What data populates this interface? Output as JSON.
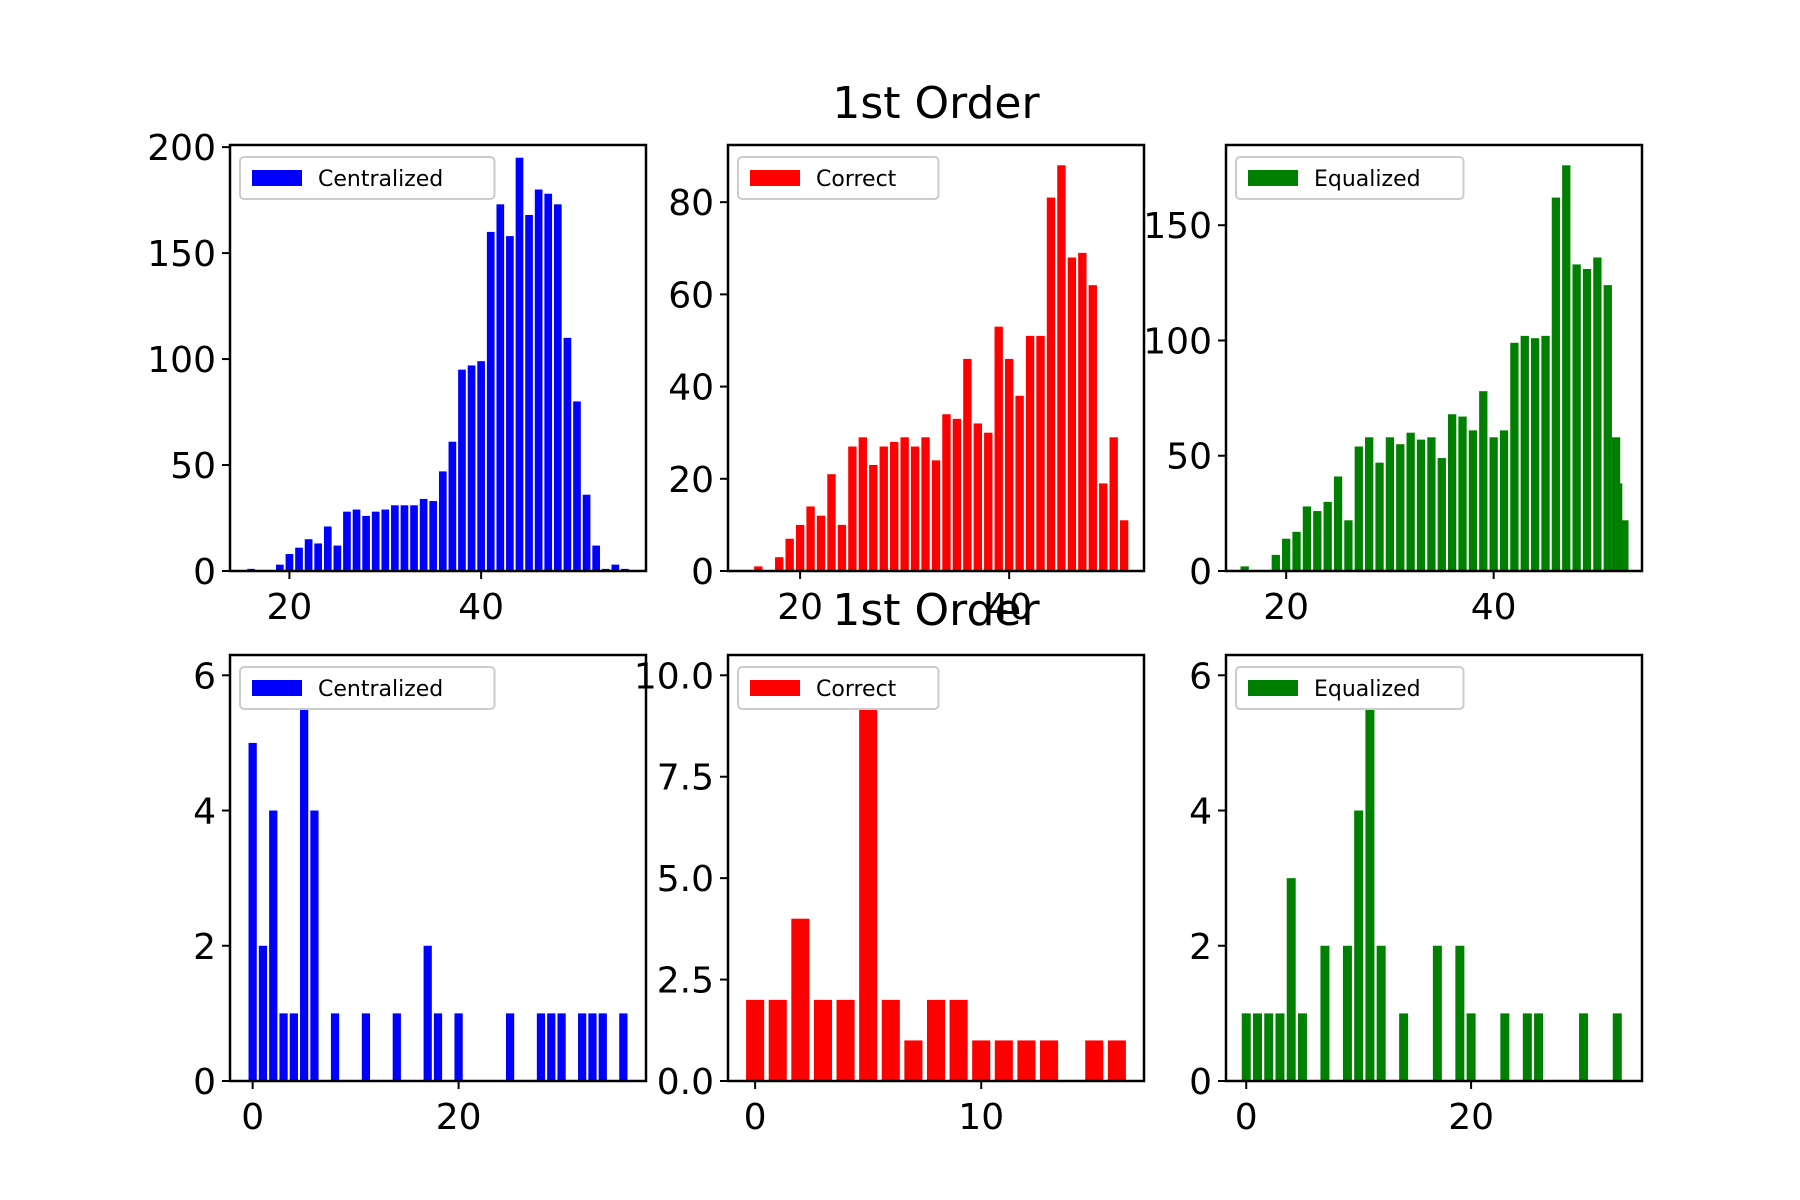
{
  "figure": {
    "titles": [
      {
        "text": "1st Order"
      },
      {
        "text": "1st Order"
      }
    ]
  },
  "chart_data": [
    {
      "type": "bar",
      "title": "",
      "legend": "top-left",
      "series": [
        {
          "name": "Centralized",
          "color": "#0000ff"
        }
      ],
      "x": [
        16,
        19,
        20,
        21,
        22,
        23,
        24,
        25,
        26,
        27,
        28,
        29,
        30,
        31,
        32,
        33,
        34,
        35,
        36,
        37,
        38,
        39,
        40,
        41,
        42,
        43,
        44,
        45,
        46,
        47,
        48,
        49,
        50,
        51,
        52,
        53,
        54,
        55
      ],
      "values": [
        1,
        3,
        8,
        11,
        15,
        13,
        21,
        12,
        28,
        29,
        26,
        28,
        29,
        31,
        31,
        31,
        34,
        33,
        47,
        61,
        95,
        97,
        99,
        160,
        173,
        158,
        195,
        168,
        180,
        178,
        173,
        110,
        80,
        36,
        12,
        1,
        3,
        1
      ],
      "bar_width": 0.8,
      "xlim": [
        13.8,
        57.2
      ],
      "ylim": [
        0,
        201
      ],
      "xticks": [
        20,
        40
      ],
      "yticks": [
        0,
        50,
        100,
        150,
        200
      ]
    },
    {
      "type": "bar",
      "title": "",
      "legend": "top-left",
      "series": [
        {
          "name": "Correct",
          "color": "#ff0000"
        }
      ],
      "x": [
        16,
        18,
        19,
        20,
        21,
        22,
        23,
        24,
        25,
        26,
        27,
        28,
        29,
        30,
        31,
        32,
        33,
        34,
        35,
        36,
        37,
        38,
        39,
        40,
        41,
        42,
        43,
        44,
        45,
        46,
        47,
        48
      ],
      "values": [
        1,
        3,
        7,
        10,
        14,
        12,
        21,
        10,
        27,
        29,
        23,
        27,
        28,
        29,
        27,
        29,
        24,
        34,
        33,
        46,
        32,
        30,
        53,
        46,
        38,
        51,
        51,
        81,
        88,
        68,
        69,
        62
      ],
      "extra_x": [
        49,
        50,
        51
      ],
      "extra_values": [
        19,
        29,
        11
      ],
      "bar_width": 0.8,
      "xlim": [
        13.1,
        52.9
      ],
      "ylim": [
        0,
        92.4
      ],
      "xticks": [
        20,
        40
      ],
      "yticks": [
        0,
        20,
        40,
        60,
        80
      ]
    },
    {
      "type": "bar",
      "title": "",
      "legend": "top-left",
      "series": [
        {
          "name": "Equalized",
          "color": "#008000"
        }
      ],
      "x": [
        16,
        19,
        20,
        21,
        22,
        23,
        24,
        25,
        26,
        27,
        28,
        29,
        30,
        31,
        32,
        33,
        34,
        35,
        36,
        37,
        38,
        39,
        40,
        41,
        42,
        43,
        44,
        45,
        46,
        47,
        48,
        49,
        50,
        51,
        52
      ],
      "values": [
        2,
        7,
        14,
        17,
        28,
        26,
        30,
        41,
        22,
        54,
        58,
        47,
        58,
        55,
        60,
        57,
        58,
        49,
        68,
        67,
        61,
        78,
        58,
        61,
        99,
        102,
        101,
        102,
        162,
        176,
        133,
        131,
        136,
        124,
        38
      ],
      "extra_x": [
        51.8,
        52.6
      ],
      "extra_values": [
        58,
        22
      ],
      "bar_width": 0.8,
      "xlim": [
        14.2,
        54.3
      ],
      "ylim": [
        0,
        184.8
      ],
      "xticks": [
        20,
        40
      ],
      "yticks": [
        0,
        50,
        100,
        150
      ]
    },
    {
      "type": "bar",
      "title": "",
      "legend": "top-left",
      "series": [
        {
          "name": "Centralized",
          "color": "#0000ff"
        }
      ],
      "x": [
        0,
        1,
        2,
        3,
        4,
        5,
        6,
        8,
        11,
        14,
        17,
        18,
        20,
        25,
        28,
        29,
        30,
        32,
        33,
        34,
        36
      ],
      "values": [
        5,
        2,
        4,
        1,
        1,
        6,
        4,
        1,
        1,
        1,
        2,
        1,
        1,
        1,
        1,
        1,
        1,
        1,
        1,
        1,
        1
      ],
      "bar_width": 0.8,
      "xlim": [
        -2.2,
        38.2
      ],
      "ylim": [
        0,
        6.3
      ],
      "xticks": [
        0,
        20
      ],
      "yticks": [
        0,
        2,
        4,
        6
      ]
    },
    {
      "type": "bar",
      "title": "",
      "legend": "top-left",
      "series": [
        {
          "name": "Correct",
          "color": "#ff0000"
        }
      ],
      "x": [
        0,
        1,
        2,
        3,
        4,
        5,
        6,
        7,
        8,
        9,
        10,
        11,
        12,
        13,
        15,
        16
      ],
      "values": [
        2,
        2,
        4,
        2,
        2,
        10,
        2,
        1,
        2,
        2,
        1,
        1,
        1,
        1,
        1,
        1
      ],
      "bar_width": 0.8,
      "xlim": [
        -1.2,
        17.2
      ],
      "ylim": [
        0,
        10.5
      ],
      "xticks": [
        0,
        10
      ],
      "yticks": [
        0.0,
        2.5,
        5.0,
        7.5,
        10.0
      ],
      "ytick_labels": [
        "0.0",
        "2.5",
        "5.0",
        "7.5",
        "10.0"
      ]
    },
    {
      "type": "bar",
      "title": "",
      "legend": "top-left",
      "series": [
        {
          "name": "Equalized",
          "color": "#008000"
        }
      ],
      "x": [
        0,
        1,
        2,
        3,
        4,
        5,
        7,
        9,
        10,
        11,
        12,
        14,
        17,
        19,
        20,
        23,
        25,
        26,
        30,
        33
      ],
      "values": [
        1,
        1,
        1,
        1,
        3,
        1,
        2,
        2,
        4,
        6,
        2,
        1,
        2,
        2,
        1,
        1,
        1,
        1,
        1,
        1
      ],
      "bar_width": 0.8,
      "xlim": [
        -1.8,
        35.2
      ],
      "ylim": [
        0,
        6.3
      ],
      "xticks": [
        0,
        20
      ],
      "yticks": [
        0,
        2,
        4,
        6
      ]
    }
  ]
}
